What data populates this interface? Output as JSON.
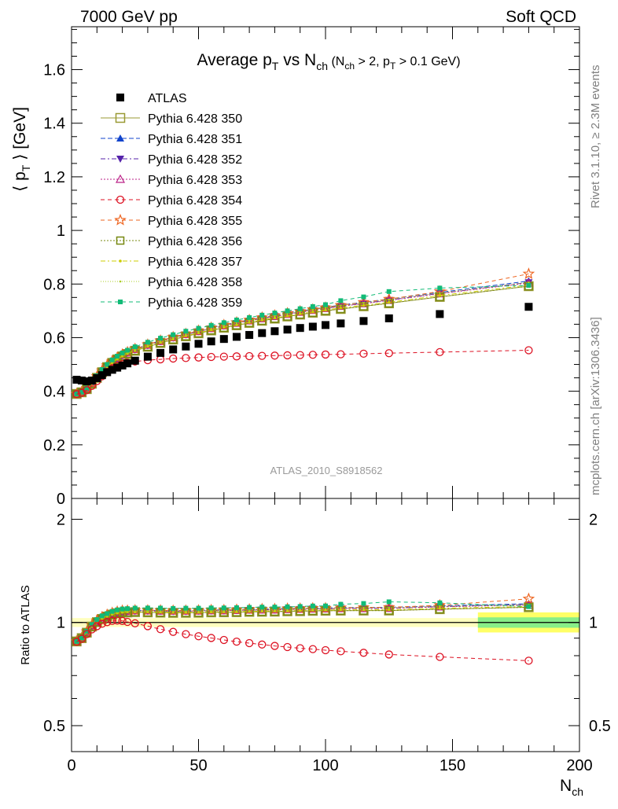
{
  "header": {
    "left": "7000 GeV pp",
    "right": "Soft QCD"
  },
  "side": {
    "rivet": "Rivet 3.1.10, ≥ 2.3M events",
    "mcplots": "mcplots.cern.ch [arXiv:1306.3436]"
  },
  "chart_data": [
    {
      "type": "line",
      "title": "Average p_T vs N_ch (N_ch > 2, p_T > 0.1 GeV)",
      "ylabel": "⟨ p_T ⟩ [GeV]",
      "watermark": "ATLAS_2010_S8918562",
      "xlim": [
        0,
        200
      ],
      "ylim": [
        0,
        1.76
      ],
      "yticks": [
        0,
        0.2,
        0.4,
        0.6,
        0.8,
        1,
        1.2,
        1.4,
        1.6
      ],
      "ytick_labels": [
        "0",
        "0.2",
        "0.4",
        "0.6",
        "0.8",
        "1",
        "1.2",
        "1.4",
        "1.6"
      ],
      "legend_position": "upper-left",
      "series": [
        {
          "name": "ATLAS",
          "color": "#000000",
          "marker": "square-filled",
          "dash": "none",
          "x": [
            2,
            4,
            6,
            8,
            10,
            12,
            14,
            16,
            18,
            20,
            22,
            25,
            30,
            35,
            40,
            45,
            50,
            55,
            60,
            65,
            70,
            75,
            80,
            85,
            90,
            95,
            100,
            106,
            115,
            125,
            145,
            180
          ],
          "y": [
            0.443,
            0.44,
            0.437,
            0.44,
            0.449,
            0.46,
            0.471,
            0.48,
            0.488,
            0.496,
            0.504,
            0.514,
            0.529,
            0.543,
            0.556,
            0.567,
            0.577,
            0.586,
            0.595,
            0.603,
            0.61,
            0.617,
            0.624,
            0.63,
            0.636,
            0.641,
            0.647,
            0.653,
            0.662,
            0.672,
            0.688,
            0.715
          ]
        },
        {
          "name": "Pythia 6.428 350",
          "color": "#999933",
          "marker": "square-open",
          "dash": "solid",
          "x": [
            2,
            4,
            6,
            8,
            10,
            12,
            14,
            16,
            18,
            20,
            22,
            25,
            30,
            35,
            40,
            45,
            50,
            55,
            60,
            65,
            70,
            75,
            80,
            85,
            90,
            95,
            100,
            106,
            115,
            125,
            145,
            180
          ],
          "y": [
            0.39,
            0.396,
            0.408,
            0.428,
            0.45,
            0.471,
            0.49,
            0.506,
            0.519,
            0.53,
            0.539,
            0.551,
            0.566,
            0.58,
            0.593,
            0.605,
            0.616,
            0.627,
            0.637,
            0.646,
            0.655,
            0.663,
            0.671,
            0.679,
            0.686,
            0.693,
            0.7,
            0.707,
            0.717,
            0.728,
            0.752,
            0.792
          ]
        },
        {
          "name": "Pythia 6.428 351",
          "color": "#1144cc",
          "marker": "triangle-up-filled",
          "dash": "6,3",
          "x": [
            2,
            4,
            6,
            8,
            10,
            12,
            14,
            16,
            18,
            20,
            22,
            25,
            30,
            35,
            40,
            45,
            50,
            55,
            60,
            65,
            70,
            75,
            80,
            85,
            90,
            95,
            100,
            106,
            115,
            125,
            145,
            180
          ],
          "y": [
            0.39,
            0.396,
            0.409,
            0.43,
            0.453,
            0.475,
            0.494,
            0.51,
            0.524,
            0.535,
            0.545,
            0.557,
            0.574,
            0.588,
            0.602,
            0.614,
            0.626,
            0.637,
            0.648,
            0.657,
            0.667,
            0.675,
            0.684,
            0.692,
            0.699,
            0.706,
            0.713,
            0.722,
            0.732,
            0.744,
            0.769,
            0.811
          ]
        },
        {
          "name": "Pythia 6.428 352",
          "color": "#5522aa",
          "marker": "triangle-down-filled",
          "dash": "6,3,2,3",
          "x": [
            2,
            4,
            6,
            8,
            10,
            12,
            14,
            16,
            18,
            20,
            22,
            25,
            30,
            35,
            40,
            45,
            50,
            55,
            60,
            65,
            70,
            75,
            80,
            85,
            90,
            95,
            100,
            106,
            115,
            125,
            145,
            180
          ],
          "y": [
            0.389,
            0.395,
            0.408,
            0.429,
            0.452,
            0.474,
            0.492,
            0.508,
            0.522,
            0.533,
            0.543,
            0.555,
            0.571,
            0.586,
            0.599,
            0.611,
            0.623,
            0.634,
            0.644,
            0.654,
            0.663,
            0.672,
            0.68,
            0.688,
            0.695,
            0.703,
            0.709,
            0.718,
            0.728,
            0.74,
            0.765,
            0.806
          ]
        },
        {
          "name": "Pythia 6.428 353",
          "color": "#bb2288",
          "marker": "triangle-up-open",
          "dash": "2,2",
          "x": [
            2,
            4,
            6,
            8,
            10,
            12,
            14,
            16,
            18,
            20,
            22,
            25,
            30,
            35,
            40,
            45,
            50,
            55,
            60,
            65,
            70,
            75,
            80,
            85,
            90,
            95,
            100,
            106,
            115,
            125,
            145,
            180
          ],
          "y": [
            0.39,
            0.396,
            0.409,
            0.43,
            0.452,
            0.474,
            0.493,
            0.509,
            0.522,
            0.534,
            0.543,
            0.556,
            0.572,
            0.586,
            0.6,
            0.612,
            0.623,
            0.634,
            0.644,
            0.654,
            0.663,
            0.671,
            0.679,
            0.687,
            0.695,
            0.702,
            0.709,
            0.717,
            0.727,
            0.739,
            0.764,
            0.804
          ]
        },
        {
          "name": "Pythia 6.428 354",
          "color": "#dd1122",
          "marker": "circle-open",
          "dash": "5,4",
          "x": [
            2,
            4,
            6,
            8,
            10,
            12,
            14,
            16,
            18,
            20,
            22,
            25,
            30,
            35,
            40,
            45,
            50,
            55,
            60,
            65,
            70,
            75,
            80,
            85,
            90,
            95,
            100,
            106,
            115,
            125,
            145,
            180
          ],
          "y": [
            0.389,
            0.394,
            0.404,
            0.42,
            0.438,
            0.456,
            0.472,
            0.485,
            0.494,
            0.501,
            0.506,
            0.511,
            0.516,
            0.519,
            0.522,
            0.524,
            0.526,
            0.528,
            0.529,
            0.53,
            0.531,
            0.532,
            0.533,
            0.534,
            0.535,
            0.536,
            0.537,
            0.538,
            0.54,
            0.542,
            0.546,
            0.553
          ]
        },
        {
          "name": "Pythia 6.428 355",
          "color": "#ee6622",
          "marker": "star-open",
          "dash": "5,4",
          "x": [
            2,
            4,
            6,
            8,
            10,
            12,
            14,
            16,
            18,
            20,
            22,
            25,
            30,
            35,
            40,
            45,
            50,
            55,
            60,
            65,
            70,
            75,
            80,
            85,
            90,
            95,
            100,
            106,
            115,
            125,
            145,
            180
          ],
          "y": [
            0.39,
            0.397,
            0.411,
            0.432,
            0.455,
            0.477,
            0.496,
            0.512,
            0.525,
            0.537,
            0.546,
            0.558,
            0.574,
            0.589,
            0.602,
            0.614,
            0.626,
            0.637,
            0.647,
            0.657,
            0.666,
            0.675,
            0.683,
            0.691,
            0.698,
            0.705,
            0.712,
            0.721,
            0.732,
            0.744,
            0.772,
            0.838
          ]
        },
        {
          "name": "Pythia 6.428 356",
          "color": "#778811",
          "marker": "square-open-small",
          "dash": "2,2",
          "x": [
            2,
            4,
            6,
            8,
            10,
            12,
            14,
            16,
            18,
            20,
            22,
            25,
            30,
            35,
            40,
            45,
            50,
            55,
            60,
            65,
            70,
            75,
            80,
            85,
            90,
            95,
            100,
            106,
            115,
            125,
            145,
            180
          ],
          "y": [
            0.39,
            0.396,
            0.408,
            0.428,
            0.45,
            0.471,
            0.49,
            0.506,
            0.519,
            0.53,
            0.539,
            0.551,
            0.566,
            0.58,
            0.593,
            0.605,
            0.616,
            0.627,
            0.637,
            0.646,
            0.655,
            0.663,
            0.671,
            0.679,
            0.686,
            0.693,
            0.7,
            0.707,
            0.717,
            0.728,
            0.752,
            0.792
          ]
        },
        {
          "name": "Pythia 6.428 357",
          "color": "#cccc00",
          "marker": "dot",
          "dash": "6,3,2,3",
          "x": [
            2,
            4,
            6,
            8,
            10,
            12,
            14,
            16,
            18,
            20,
            22,
            25,
            30,
            35,
            40,
            45,
            50,
            55,
            60,
            65,
            70,
            75,
            80,
            85,
            90,
            95,
            100,
            106,
            115,
            125,
            145,
            180
          ],
          "y": [
            0.39,
            0.396,
            0.409,
            0.429,
            0.451,
            0.472,
            0.491,
            0.507,
            0.52,
            0.531,
            0.541,
            0.552,
            0.568,
            0.582,
            0.595,
            0.607,
            0.618,
            0.629,
            0.639,
            0.648,
            0.657,
            0.666,
            0.674,
            0.681,
            0.689,
            0.696,
            0.703,
            0.711,
            0.721,
            0.732,
            0.757,
            0.796
          ]
        },
        {
          "name": "Pythia 6.428 358",
          "color": "#aacc22",
          "marker": "dot-small",
          "dash": "1,2",
          "x": [
            2,
            4,
            6,
            8,
            10,
            12,
            14,
            16,
            18,
            20,
            22,
            25,
            30,
            35,
            40,
            45,
            50,
            55,
            60,
            65,
            70,
            75,
            80,
            85,
            90,
            95,
            100,
            106,
            115,
            125,
            145,
            180
          ],
          "y": [
            0.39,
            0.396,
            0.409,
            0.43,
            0.452,
            0.474,
            0.493,
            0.509,
            0.523,
            0.534,
            0.544,
            0.556,
            0.572,
            0.587,
            0.6,
            0.613,
            0.624,
            0.635,
            0.645,
            0.655,
            0.664,
            0.673,
            0.681,
            0.689,
            0.697,
            0.704,
            0.711,
            0.72,
            0.73,
            0.742,
            0.767,
            0.806
          ]
        },
        {
          "name": "Pythia 6.428 359",
          "color": "#11bb77",
          "marker": "square-filled-small",
          "dash": "5,4",
          "x": [
            2,
            4,
            6,
            8,
            10,
            12,
            14,
            16,
            18,
            20,
            22,
            25,
            30,
            35,
            40,
            45,
            50,
            55,
            60,
            65,
            70,
            75,
            80,
            85,
            90,
            95,
            100,
            106,
            115,
            125,
            145,
            180
          ],
          "y": [
            0.39,
            0.397,
            0.412,
            0.434,
            0.458,
            0.481,
            0.5,
            0.517,
            0.531,
            0.543,
            0.553,
            0.566,
            0.583,
            0.598,
            0.611,
            0.624,
            0.635,
            0.646,
            0.656,
            0.666,
            0.675,
            0.684,
            0.692,
            0.7,
            0.708,
            0.716,
            0.723,
            0.738,
            0.752,
            0.772,
            0.785,
            0.795
          ]
        }
      ]
    },
    {
      "type": "line",
      "ylabel": "Ratio to ATLAS",
      "xlabel": "N_ch",
      "xlim": [
        0,
        200
      ],
      "ylim": [
        0.42,
        2.3
      ],
      "y_scale": "log",
      "xticks": [
        0,
        50,
        100,
        150,
        200
      ],
      "xtick_labels": [
        "0",
        "50",
        "100",
        "150",
        "200"
      ],
      "yticks": [
        0.5,
        1,
        2
      ],
      "ytick_labels": [
        "0.5",
        "1",
        "2"
      ],
      "reference": 1,
      "uncertainty_bands": [
        {
          "x0": 160,
          "x1": 200,
          "outer": [
            0.935,
            1.07
          ],
          "inner": [
            0.965,
            1.035
          ]
        }
      ]
    }
  ]
}
